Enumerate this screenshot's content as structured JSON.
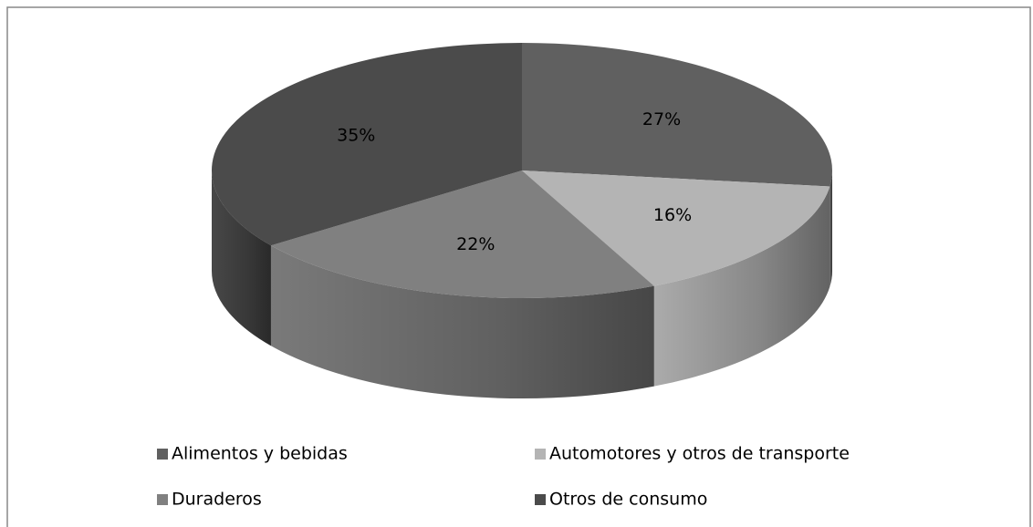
{
  "chart_data": {
    "type": "pie",
    "categories": [
      "Alimentos y bebidas",
      "Automotores y otros de transporte",
      "Duraderos",
      "Otros de consumo"
    ],
    "values": [
      27,
      16,
      22,
      35
    ],
    "value_labels": [
      "27%",
      "16%",
      "22%",
      "35%"
    ],
    "colors": [
      "#606060",
      "#b4b4b4",
      "#808080",
      "#4b4b4b"
    ],
    "legend": "bottom"
  }
}
